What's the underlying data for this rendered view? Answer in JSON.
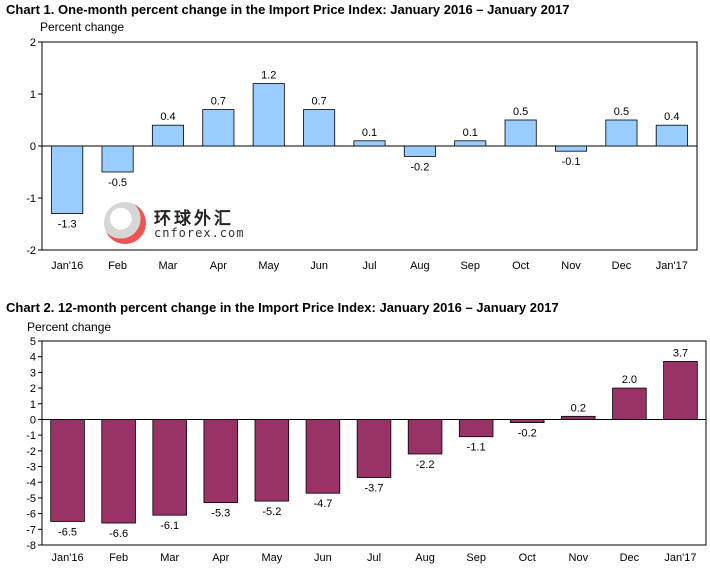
{
  "chart_data": [
    {
      "type": "bar",
      "title": "Chart 1. One-month percent change in the Import Price Index: January 2016 – January 2017",
      "ylabel": "Percent change",
      "xlabel": "",
      "categories": [
        "Jan'16",
        "Feb",
        "Mar",
        "Apr",
        "May",
        "Jun",
        "Jul",
        "Aug",
        "Sep",
        "Oct",
        "Nov",
        "Dec",
        "Jan'17"
      ],
      "values": [
        -1.3,
        -0.5,
        0.4,
        0.7,
        1.2,
        0.7,
        0.1,
        -0.2,
        0.1,
        0.5,
        -0.1,
        0.5,
        0.4
      ],
      "data_labels": [
        "-1.3",
        "-0.5",
        "0.4",
        "0.7",
        "1.2",
        "0.7",
        "0.1",
        "-0.2",
        "0.1",
        "0.5",
        "-0.1",
        "0.5",
        "0.4"
      ],
      "ylim": [
        -2,
        2
      ],
      "yticks": [
        -2,
        -1,
        0,
        1,
        2
      ],
      "grid": false,
      "bar_color": "#99ccff"
    },
    {
      "type": "bar",
      "title": "Chart 2. 12-month percent change in the Import Price Index: January 2016 – January 2017",
      "ylabel": "Percent change",
      "xlabel": "",
      "categories": [
        "Jan'16",
        "Feb",
        "Mar",
        "Apr",
        "May",
        "Jun",
        "Jul",
        "Aug",
        "Sep",
        "Oct",
        "Nov",
        "Dec",
        "Jan'17"
      ],
      "values": [
        -6.5,
        -6.6,
        -6.1,
        -5.3,
        -5.2,
        -4.7,
        -3.7,
        -2.2,
        -1.1,
        -0.2,
        0.2,
        2.0,
        3.7
      ],
      "data_labels": [
        "-6.5",
        "-6.6",
        "-6.1",
        "-5.3",
        "-5.2",
        "-4.7",
        "-3.7",
        "-2.2",
        "-1.1",
        "-0.2",
        "0.2",
        "2.0",
        "3.7"
      ],
      "ylim": [
        -8,
        5
      ],
      "yticks": [
        -8,
        -7,
        -6,
        -5,
        -4,
        -3,
        -2,
        -1,
        0,
        1,
        2,
        3,
        4,
        5
      ],
      "grid": false,
      "bar_color": "#993366"
    }
  ],
  "watermark": {
    "cn_text": "环球外汇",
    "en_text": "cnforex.com",
    "icon": "cnforex-logo-icon"
  }
}
